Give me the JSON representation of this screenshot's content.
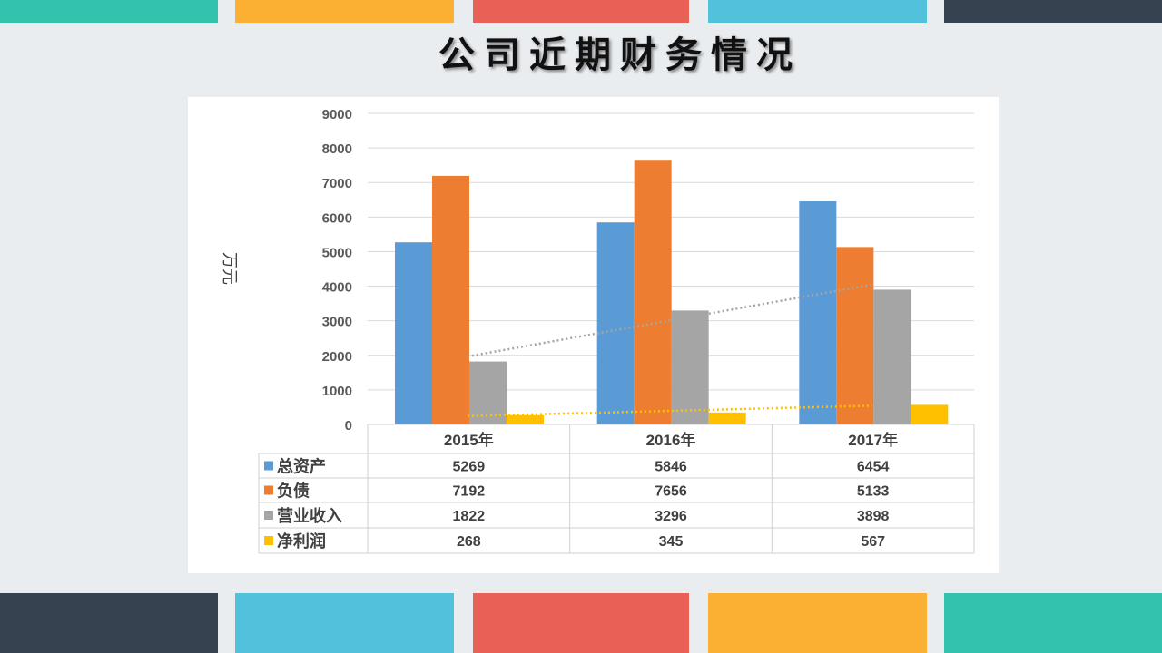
{
  "title": "公司近期财务情况",
  "colors": {
    "teal": "#33c3ad",
    "orange": "#fbb034",
    "red": "#e96156",
    "blue": "#52c2dc",
    "dark": "#36424f"
  },
  "chart_data": {
    "type": "bar",
    "title": "",
    "ylabel": "万元",
    "xlabel": "",
    "ylim": [
      0,
      9000
    ],
    "yticks": [
      0,
      1000,
      2000,
      3000,
      4000,
      5000,
      6000,
      7000,
      8000,
      9000
    ],
    "grid": true,
    "categories": [
      "2015年",
      "2016年",
      "2017年"
    ],
    "series": [
      {
        "name": "总资产",
        "color": "#5b9bd5",
        "values": [
          5269,
          5846,
          6454
        ]
      },
      {
        "name": "负债",
        "color": "#ed7d31",
        "values": [
          7192,
          7656,
          5133
        ]
      },
      {
        "name": "营业收入",
        "color": "#a5a5a5",
        "values": [
          1822,
          3296,
          3898
        ],
        "trendline": "linear"
      },
      {
        "name": "净利润",
        "color": "#ffc000",
        "values": [
          268,
          345,
          567
        ],
        "trendline": "linear"
      }
    ],
    "legend": "data-table"
  }
}
